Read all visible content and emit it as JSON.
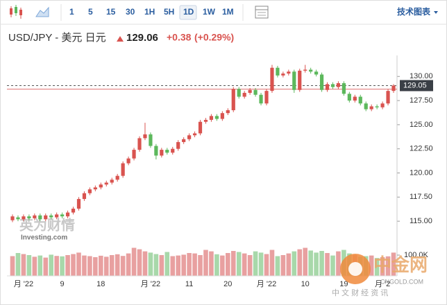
{
  "toolbar": {
    "intervals": [
      "1",
      "5",
      "15",
      "30",
      "1H",
      "5H",
      "1D",
      "1W",
      "1M"
    ],
    "selected": "1D",
    "indicators_button": "技术图表"
  },
  "header": {
    "symbol": "USD/JPY - 美元 日元",
    "price": "129.06",
    "change": "+0.38",
    "change_pct": "(+0.29%)"
  },
  "watermarks": {
    "left_logo": "英为财情",
    "left_sub": "Investing.com",
    "right_logo": "中金网",
    "right_url": "CNGOLD.COM",
    "right_sub": "中 文 财 经 资 讯"
  },
  "chart_data": [
    {
      "type": "candlestick",
      "up_color": "#d9534f",
      "down_color": "#5cb85c",
      "categories": [
        null,
        null,
        "月 '22",
        null,
        null,
        null,
        null,
        null,
        null,
        "9",
        null,
        null,
        null,
        null,
        null,
        null,
        "18",
        null,
        null,
        null,
        null,
        null,
        null,
        null,
        null,
        "月 '22",
        null,
        null,
        null,
        null,
        null,
        null,
        "11",
        null,
        null,
        null,
        null,
        null,
        null,
        "20",
        null,
        null,
        null,
        null,
        null,
        null,
        "月 '22",
        null,
        null,
        null,
        null,
        null,
        null,
        "10",
        null,
        null,
        null,
        null,
        null,
        null,
        "19",
        null,
        null,
        null,
        null,
        null,
        null,
        "月 '2",
        null,
        null
      ],
      "open": [
        115.1,
        115.4,
        115.2,
        115.5,
        115.3,
        115.6,
        115.2,
        115.6,
        115.4,
        115.7,
        115.5,
        115.9,
        116.3,
        117.3,
        117.9,
        118.3,
        118.5,
        118.8,
        119.0,
        119.3,
        119.7,
        121.0,
        121.5,
        122.4,
        123.6,
        124.0,
        122.8,
        121.8,
        122.4,
        122.1,
        122.5,
        123.2,
        123.5,
        123.9,
        124.1,
        125.3,
        125.5,
        125.9,
        125.6,
        126.2,
        126.5,
        128.7,
        127.9,
        128.3,
        128.6,
        128.1,
        127.2,
        128.5,
        130.9,
        130.1,
        130.3,
        130.5,
        128.6,
        130.6,
        130.7,
        130.5,
        130.2,
        128.6,
        129.2,
        128.9,
        129.3,
        128.2,
        127.5,
        127.9,
        127.2,
        126.6,
        126.9,
        126.8,
        127.2,
        128.5
      ],
      "high": [
        115.7,
        115.6,
        115.7,
        115.7,
        115.8,
        115.8,
        115.8,
        115.8,
        115.9,
        115.9,
        116.1,
        116.5,
        117.5,
        118.1,
        118.5,
        118.7,
        119.0,
        119.2,
        119.5,
        119.9,
        121.2,
        121.7,
        122.6,
        123.8,
        125.2,
        124.2,
        123.0,
        122.6,
        122.6,
        122.7,
        123.4,
        123.7,
        124.1,
        124.3,
        125.5,
        125.7,
        126.1,
        126.1,
        126.4,
        126.7,
        128.9,
        128.9,
        128.5,
        128.8,
        128.8,
        128.3,
        128.7,
        131.2,
        131.1,
        130.5,
        130.7,
        130.7,
        130.8,
        131.2,
        130.9,
        130.7,
        130.4,
        129.4,
        129.4,
        129.5,
        129.5,
        128.4,
        128.1,
        128.1,
        127.4,
        127.1,
        127.1,
        127.4,
        128.7,
        129.2
      ],
      "low": [
        114.9,
        115.0,
        115.0,
        115.1,
        115.1,
        115.0,
        115.0,
        115.2,
        115.2,
        115.3,
        115.3,
        115.7,
        116.1,
        117.1,
        117.7,
        118.1,
        118.3,
        118.6,
        118.8,
        119.1,
        119.5,
        120.8,
        121.3,
        122.2,
        123.4,
        122.6,
        121.4,
        121.6,
        121.9,
        121.9,
        122.3,
        123.0,
        123.3,
        123.7,
        123.9,
        125.1,
        125.3,
        125.4,
        125.4,
        126.0,
        126.3,
        127.7,
        127.7,
        128.1,
        127.9,
        127.0,
        127.0,
        128.3,
        129.9,
        129.9,
        130.1,
        128.3,
        128.4,
        130.4,
        130.3,
        130.0,
        128.4,
        128.4,
        128.7,
        128.7,
        128.0,
        127.3,
        127.3,
        127.0,
        126.4,
        126.4,
        126.6,
        126.6,
        127.0,
        128.3
      ],
      "close": [
        115.5,
        115.2,
        115.5,
        115.3,
        115.6,
        115.2,
        115.6,
        115.4,
        115.7,
        115.5,
        115.9,
        116.3,
        117.3,
        117.9,
        118.3,
        118.5,
        118.8,
        119.0,
        119.3,
        119.7,
        121.0,
        121.5,
        122.4,
        123.6,
        124.0,
        122.8,
        121.8,
        122.4,
        122.1,
        122.5,
        123.2,
        123.5,
        123.9,
        124.1,
        125.3,
        125.5,
        125.9,
        125.6,
        126.2,
        126.5,
        128.7,
        127.9,
        128.3,
        128.6,
        128.1,
        127.2,
        128.5,
        130.9,
        130.1,
        130.3,
        130.5,
        128.6,
        130.6,
        130.7,
        130.5,
        130.2,
        128.6,
        129.2,
        128.9,
        129.3,
        128.2,
        127.5,
        127.9,
        127.2,
        126.6,
        126.9,
        126.8,
        127.2,
        128.5,
        129.05
      ],
      "ylim": [
        113.5,
        131.6
      ],
      "yticks": [
        {
          "value": 115,
          "label": "115.00"
        },
        {
          "value": 117.5,
          "label": "117.50"
        },
        {
          "value": 120,
          "label": "120.00"
        },
        {
          "value": 122.5,
          "label": "122.50"
        },
        {
          "value": 125,
          "label": "125.00"
        },
        {
          "value": 127.5,
          "label": "127.50"
        },
        {
          "value": 130,
          "label": "130.00"
        }
      ],
      "last_price": {
        "value": 129.05,
        "label": "129.05"
      },
      "prev_close": 128.68
    },
    {
      "type": "volume",
      "up_color": "#e8a0a0",
      "down_color": "#a8d8aa",
      "values": [
        95000,
        110000,
        105000,
        100000,
        92000,
        98000,
        88000,
        102000,
        96000,
        94000,
        100000,
        105000,
        112000,
        98000,
        95000,
        90000,
        97000,
        92000,
        100000,
        104000,
        96000,
        108000,
        135000,
        128000,
        118000,
        112000,
        105000,
        100000,
        115000,
        95000,
        98000,
        102000,
        110000,
        108000,
        100000,
        125000,
        118000,
        104000,
        98000,
        110000,
        120000,
        115000,
        108000,
        100000,
        118000,
        112000,
        105000,
        125000,
        95000,
        100000,
        108000,
        118000,
        128000,
        135000,
        122000,
        112000,
        120000,
        110000,
        98000,
        118000,
        125000,
        108000,
        100000,
        92000,
        95000,
        98000,
        86000,
        90000,
        94000,
        112000
      ],
      "ylim": [
        0,
        160000
      ],
      "yticks": [
        {
          "value": 100000,
          "label": "100.0K"
        }
      ]
    }
  ]
}
